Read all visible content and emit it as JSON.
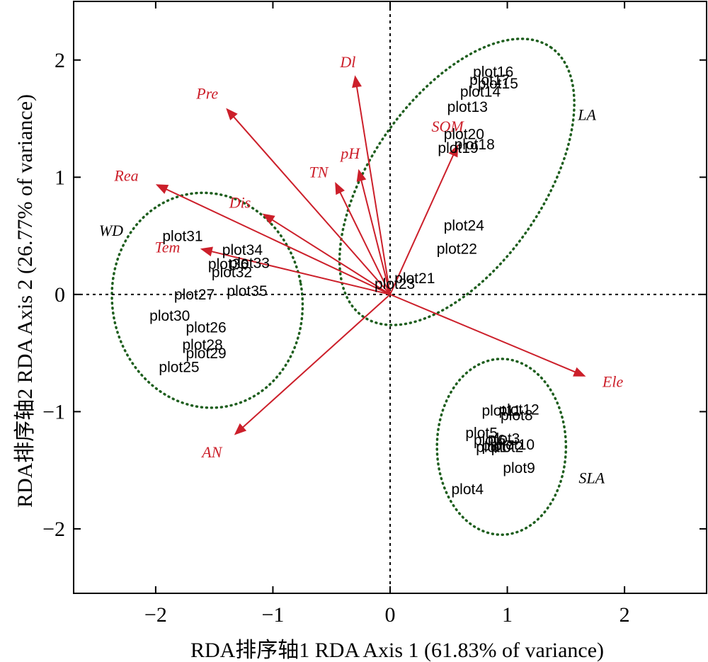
{
  "chart_data": {
    "type": "scatter",
    "subtype": "RDA biplot",
    "title": "",
    "xlabel": "RDA排序轴1 RDA Axis 1 (61.83% of variance)",
    "ylabel": "RDA排序轴2 RDA Axis 2 (26.77% of variance)",
    "xlim": [
      -2.7,
      2.7
    ],
    "ylim": [
      -2.55,
      2.5
    ],
    "xticks": [
      -2,
      -1,
      0,
      1,
      2
    ],
    "yticks": [
      -2,
      -1,
      0,
      1,
      2
    ],
    "xtick_labels": [
      "−2",
      "−1",
      "0",
      "1",
      "2"
    ],
    "ytick_labels": [
      "−2",
      "−1",
      "0",
      "1",
      "2"
    ],
    "zero_lines": true,
    "grid": false,
    "colors": {
      "arrow": "#cc1f2a",
      "ellipse": "#1e5e1e",
      "text": "#000000"
    },
    "arrows": [
      {
        "name": "Dl",
        "x": -0.3,
        "y": 1.87,
        "lx": -0.36,
        "ly": 1.97
      },
      {
        "name": "Pre",
        "x": -1.4,
        "y": 1.59,
        "lx": -1.56,
        "ly": 1.7
      },
      {
        "name": "Rea",
        "x": -2.0,
        "y": 0.94,
        "lx": -2.25,
        "ly": 1.0
      },
      {
        "name": "Dis",
        "x": -1.09,
        "y": 0.69,
        "lx": -1.28,
        "ly": 0.77
      },
      {
        "name": "Tem",
        "x": -1.62,
        "y": 0.39,
        "lx": -1.9,
        "ly": 0.39
      },
      {
        "name": "TN",
        "x": -0.47,
        "y": 0.96,
        "lx": -0.61,
        "ly": 1.03
      },
      {
        "name": "pH",
        "x": -0.27,
        "y": 1.07,
        "lx": -0.34,
        "ly": 1.19
      },
      {
        "name": "SOM",
        "x": 0.58,
        "y": 1.28,
        "lx": 0.49,
        "ly": 1.42
      },
      {
        "name": "Ele",
        "x": 1.67,
        "y": -0.7,
        "lx": 1.9,
        "ly": -0.76
      },
      {
        "name": "AN",
        "x": -1.33,
        "y": -1.2,
        "lx": -1.52,
        "ly": -1.36
      }
    ],
    "sites": [
      {
        "name": "plot1",
        "x": 0.87,
        "y": -1.31
      },
      {
        "name": "plot2",
        "x": 1.0,
        "y": -1.31
      },
      {
        "name": "plot3",
        "x": 0.97,
        "y": -1.24
      },
      {
        "name": "plot4",
        "x": 0.66,
        "y": -1.67
      },
      {
        "name": "plot5",
        "x": 0.78,
        "y": -1.19
      },
      {
        "name": "plot6",
        "x": 0.85,
        "y": -1.25
      },
      {
        "name": "plot7",
        "x": 0.92,
        "y": -1.3
      },
      {
        "name": "plot8",
        "x": 1.08,
        "y": -1.04
      },
      {
        "name": "plot9",
        "x": 1.1,
        "y": -1.49
      },
      {
        "name": "plot10",
        "x": 1.06,
        "y": -1.29
      },
      {
        "name": "plot11",
        "x": 0.95,
        "y": -1.0
      },
      {
        "name": "plot12",
        "x": 1.1,
        "y": -0.99
      },
      {
        "name": "plot13",
        "x": 0.66,
        "y": 1.59
      },
      {
        "name": "plot14",
        "x": 0.77,
        "y": 1.72
      },
      {
        "name": "plot15",
        "x": 0.92,
        "y": 1.79
      },
      {
        "name": "plot16",
        "x": 0.88,
        "y": 1.89
      },
      {
        "name": "plot17",
        "x": 0.85,
        "y": 1.82
      },
      {
        "name": "plot18",
        "x": 0.72,
        "y": 1.27
      },
      {
        "name": "plot19",
        "x": 0.58,
        "y": 1.24
      },
      {
        "name": "plot20",
        "x": 0.63,
        "y": 1.36
      },
      {
        "name": "plot21",
        "x": 0.21,
        "y": 0.13
      },
      {
        "name": "plot22",
        "x": 0.57,
        "y": 0.38
      },
      {
        "name": "plot23",
        "x": 0.04,
        "y": 0.08
      },
      {
        "name": "plot24",
        "x": 0.63,
        "y": 0.58
      },
      {
        "name": "plot25",
        "x": -1.8,
        "y": -0.63
      },
      {
        "name": "plot26",
        "x": -1.57,
        "y": -0.29
      },
      {
        "name": "plot27",
        "x": -1.67,
        "y": -0.01
      },
      {
        "name": "plot28",
        "x": -1.6,
        "y": -0.44
      },
      {
        "name": "plot29",
        "x": -1.57,
        "y": -0.51
      },
      {
        "name": "plot30",
        "x": -1.88,
        "y": -0.19
      },
      {
        "name": "plot31",
        "x": -1.77,
        "y": 0.49
      },
      {
        "name": "plot32",
        "x": -1.35,
        "y": 0.18
      },
      {
        "name": "plot33",
        "x": -1.2,
        "y": 0.26
      },
      {
        "name": "plot34",
        "x": -1.26,
        "y": 0.37
      },
      {
        "name": "plot35",
        "x": -1.22,
        "y": 0.02
      },
      {
        "name": "plot36",
        "x": -1.38,
        "y": 0.25
      }
    ],
    "groups": [
      {
        "name": "LA",
        "label_x": 1.68,
        "label_y": 1.52,
        "cx": 0.57,
        "cy": 0.96,
        "rx": 1.4,
        "ry": 0.73,
        "angle_deg": 55
      },
      {
        "name": "WD",
        "label_x": -2.38,
        "label_y": 0.53,
        "cx": -1.56,
        "cy": -0.05,
        "rx": 0.81,
        "ry": 0.92,
        "angle_deg": 10
      },
      {
        "name": "SLA",
        "label_x": 1.72,
        "label_y": -1.58,
        "cx": 0.95,
        "cy": -1.3,
        "rx": 0.55,
        "ry": 0.75,
        "angle_deg": 0
      }
    ]
  }
}
